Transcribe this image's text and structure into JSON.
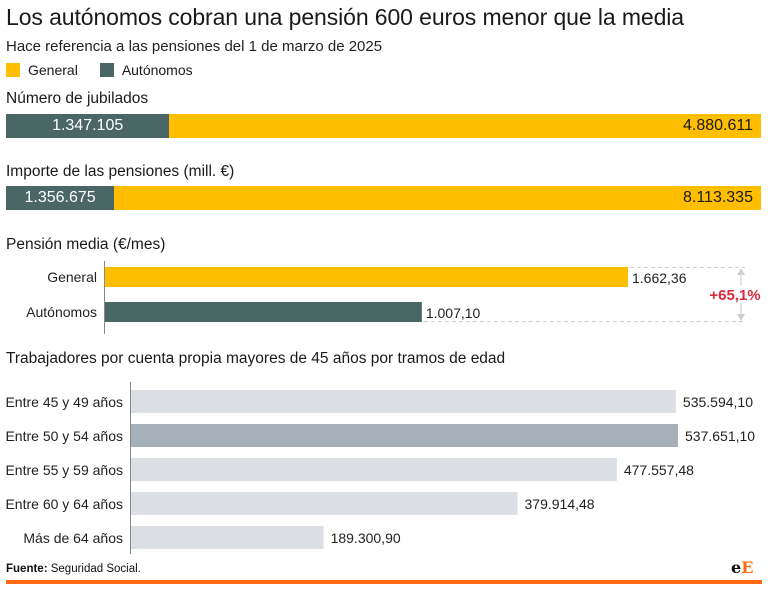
{
  "header": {
    "title": "Los autónomos cobran una pensión 600 euros menor que la media",
    "subtitle": "Hace referencia a las pensiones del 1 de marzo de 2025"
  },
  "legend": [
    {
      "label": "General",
      "color": "#ffbe00"
    },
    {
      "label": "Autónomos",
      "color": "#4a6665"
    }
  ],
  "chart_data": [
    {
      "type": "bar",
      "stacked": true,
      "title": "Número de jubilados",
      "series": [
        {
          "name": "Autónomos",
          "value": 1347105,
          "label": "1.347.105",
          "color": "#4a6665"
        },
        {
          "name": "General",
          "value": 4880611,
          "label": "4.880.611",
          "color": "#ffbe00"
        }
      ]
    },
    {
      "type": "bar",
      "stacked": true,
      "title": "Importe de las pensiones (mill. €)",
      "series": [
        {
          "name": "Autónomos",
          "value": 1356675,
          "label": "1.356.675",
          "color": "#4a6665"
        },
        {
          "name": "General",
          "value": 8113335,
          "label": "8.113.335",
          "color": "#ffbe00"
        }
      ]
    },
    {
      "type": "bar",
      "orientation": "horizontal",
      "title": "Pensión media (€/mes)",
      "categories": [
        "General",
        "Autónomos"
      ],
      "values": [
        1662.36,
        1007.1
      ],
      "value_labels": [
        "1.662,36",
        "1.007,10"
      ],
      "colors": [
        "#ffbe00",
        "#4a6665"
      ],
      "annotation": {
        "text": "+65,1%",
        "color": "#d8283c"
      },
      "xlim": [
        0,
        2000
      ]
    },
    {
      "type": "bar",
      "orientation": "horizontal",
      "title": "Trabajadores por cuenta propia mayores de 45 años por tramos de edad",
      "categories": [
        "Entre 45 y 49 años",
        "Entre 50 y 54 años",
        "Entre 55 y 59 años",
        "Entre 60 y 64 años",
        "Más de 64 años"
      ],
      "values": [
        535594.1,
        537651.1,
        477557.48,
        379914.48,
        189300.9
      ],
      "value_labels": [
        "535.594,10",
        "537.651,10",
        "477.557,48",
        "379.914,48",
        "189.300,90"
      ],
      "colors": [
        "#dcdfe3",
        "#a6b0b8",
        "#dcdfe3",
        "#dcdfe3",
        "#dcdfe3"
      ],
      "highlight": "Entre 50 y 54 años",
      "xlim": [
        0,
        537651.1
      ]
    }
  ],
  "footer": {
    "source_label": "Fuente:",
    "source_text": " Seguridad Social.",
    "logo_e1": "e",
    "logo_e2": "E"
  },
  "colors": {
    "general": "#ffbe00",
    "autonomos": "#4a6665",
    "accent_red": "#d8283c",
    "footer_rule": "#ff6a13"
  }
}
